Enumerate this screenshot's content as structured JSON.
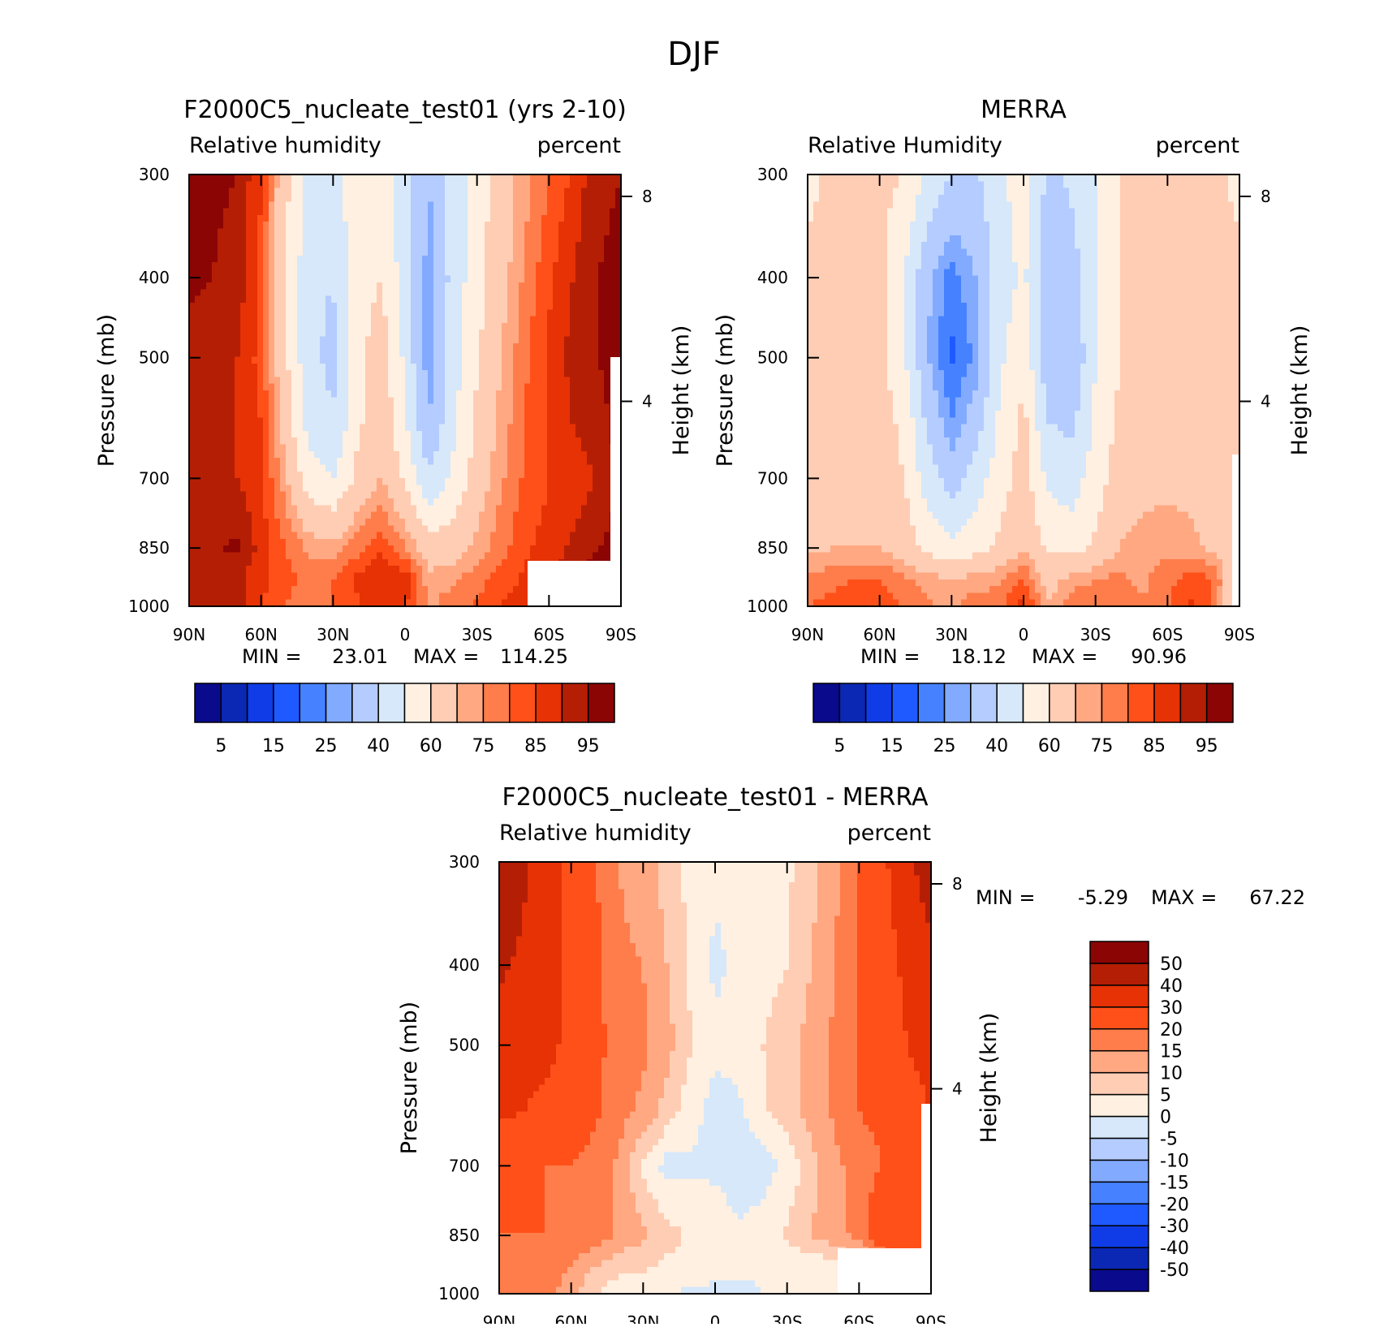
{
  "figure": {
    "title": "DJF"
  },
  "chart_data": [
    {
      "type": "heatmap",
      "title": "F2000C5_nucleate_test01 (yrs 2-10)",
      "left_label": "Relative humidity",
      "right_label": "percent",
      "xlabel": "",
      "ylabel": "Pressure (mb)",
      "y2label": "Height (km)",
      "x_ticks": [
        "90N",
        "60N",
        "30N",
        "0",
        "30S",
        "60S",
        "90S"
      ],
      "y_ticks": [
        "300",
        "400",
        "500",
        "700",
        "850",
        "1000"
      ],
      "y2_ticks": [
        "8",
        "4"
      ],
      "min_label": "MIN =",
      "min_value": "23.01",
      "max_label": "MAX =",
      "max_value": "114.25",
      "colorbar": {
        "orientation": "horizontal",
        "labels": [
          "5",
          "15",
          "25",
          "40",
          "60",
          "75",
          "85",
          "95"
        ]
      },
      "field_lat": [
        -90,
        -80,
        -70,
        -60,
        -50,
        -40,
        -30,
        -20,
        -10,
        0,
        10,
        20,
        30,
        40,
        50,
        60,
        70,
        80,
        90
      ],
      "field_p": [
        300,
        400,
        500,
        600,
        700,
        850,
        925,
        1000
      ],
      "values": [
        [
          95,
          94,
          86,
          80,
          73,
          65,
          55,
          45,
          30,
          44,
          55,
          57,
          47,
          48,
          63,
          85,
          95,
          96,
          97
        ],
        [
          96,
          95,
          90,
          84,
          76,
          67,
          56,
          44,
          26,
          45,
          60,
          55,
          40,
          42,
          60,
          84,
          93,
          95,
          96
        ],
        [
          97,
          95,
          92,
          86,
          79,
          70,
          59,
          45,
          25,
          48,
          66,
          57,
          38,
          42,
          62,
          83,
          90,
          92,
          93
        ],
        [
          97,
          93,
          90,
          86,
          80,
          72,
          62,
          48,
          30,
          52,
          67,
          58,
          40,
          46,
          66,
          85,
          90,
          92,
          93
        ],
        [
          96,
          90,
          87,
          85,
          81,
          74,
          65,
          52,
          42,
          58,
          70,
          62,
          50,
          54,
          72,
          86,
          90,
          90,
          92
        ],
        [
          97,
          95,
          91,
          87,
          84,
          78,
          72,
          66,
          64,
          76,
          84,
          78,
          72,
          74,
          80,
          88,
          96,
          94,
          92
        ],
        [
          99,
          98,
          95,
          90,
          86,
          82,
          78,
          74,
          72,
          88,
          90,
          86,
          80,
          78,
          82,
          86,
          92,
          94,
          95
        ],
        [
          99,
          99,
          97,
          92,
          88,
          85,
          81,
          78,
          74,
          86,
          88,
          84,
          80,
          77,
          80,
          86,
          92,
          93,
          94
        ]
      ]
    },
    {
      "type": "heatmap",
      "title": "MERRA",
      "left_label": "Relative Humidity",
      "right_label": "percent",
      "xlabel": "",
      "ylabel": "Pressure (mb)",
      "y2label": "Height (km)",
      "x_ticks": [
        "90N",
        "60N",
        "30N",
        "0",
        "30S",
        "60S",
        "90S"
      ],
      "y_ticks": [
        "300",
        "400",
        "500",
        "700",
        "850",
        "1000"
      ],
      "y2_ticks": [
        "8",
        "4"
      ],
      "min_label": "MIN =",
      "min_value": "18.12",
      "max_label": "MAX =",
      "max_value": "90.96",
      "colorbar": {
        "orientation": "horizontal",
        "labels": [
          "5",
          "15",
          "25",
          "40",
          "60",
          "75",
          "85",
          "95"
        ]
      },
      "field_lat": [
        -90,
        -80,
        -70,
        -60,
        -50,
        -40,
        -30,
        -20,
        -10,
        0,
        10,
        20,
        30,
        40,
        50,
        60,
        70,
        80,
        90
      ],
      "field_p": [
        300,
        400,
        500,
        600,
        700,
        850,
        925,
        1000
      ],
      "values": [
        [
          57,
          62,
          63,
          63,
          62,
          60,
          50,
          42,
          38,
          55,
          48,
          38,
          40,
          48,
          60,
          62,
          62,
          62,
          57
        ],
        [
          63,
          64,
          64,
          64,
          63,
          60,
          48,
          35,
          32,
          52,
          45,
          30,
          22,
          32,
          50,
          63,
          64,
          64,
          63
        ],
        [
          63,
          64,
          64,
          64,
          63,
          60,
          50,
          30,
          33,
          57,
          48,
          26,
          19,
          30,
          52,
          64,
          64,
          64,
          63
        ],
        [
          62,
          63,
          64,
          64,
          64,
          62,
          52,
          38,
          40,
          63,
          52,
          35,
          25,
          38,
          58,
          64,
          64,
          64,
          63
        ],
        [
          63,
          65,
          67,
          68,
          67,
          65,
          55,
          45,
          48,
          64,
          55,
          45,
          35,
          45,
          60,
          64,
          64,
          64,
          64
        ],
        [
          62,
          67,
          72,
          74,
          73,
          70,
          62,
          56,
          58,
          70,
          62,
          56,
          52,
          57,
          66,
          70,
          70,
          70,
          68
        ],
        [
          55,
          80,
          82,
          78,
          74,
          76,
          75,
          72,
          66,
          80,
          74,
          72,
          70,
          72,
          76,
          80,
          80,
          78,
          76
        ],
        [
          50,
          78,
          86,
          80,
          75,
          78,
          80,
          78,
          70,
          88,
          78,
          78,
          74,
          76,
          80,
          82,
          84,
          82,
          80
        ]
      ]
    },
    {
      "type": "heatmap",
      "title": "F2000C5_nucleate_test01 - MERRA",
      "left_label": "Relative humidity",
      "right_label": "percent",
      "xlabel": "",
      "ylabel": "Pressure (mb)",
      "y2label": "Height (km)",
      "x_ticks": [
        "90N",
        "60N",
        "30N",
        "0",
        "30S",
        "60S",
        "90S"
      ],
      "y_ticks": [
        "300",
        "400",
        "500",
        "700",
        "850",
        "1000"
      ],
      "y2_ticks": [
        "8",
        "4"
      ],
      "min_label": "MIN =",
      "min_value": "-5.29",
      "max_label": "MAX =",
      "max_value": "67.22",
      "colorbar": {
        "orientation": "vertical",
        "labels": [
          "50",
          "40",
          "30",
          "20",
          "15",
          "10",
          "5",
          "0",
          "-5",
          "-10",
          "-15",
          "-20",
          "-30",
          "-40",
          "-50"
        ]
      },
      "field_lat": [
        -90,
        -80,
        -70,
        -60,
        -50,
        -40,
        -30,
        -20,
        -10,
        0,
        10,
        20,
        30,
        40,
        50,
        60,
        70,
        80,
        90
      ],
      "field_p": [
        300,
        400,
        500,
        600,
        700,
        850,
        925,
        1000
      ],
      "values": [
        [
          45,
          38,
          28,
          20,
          14,
          8,
          4,
          3,
          2,
          1,
          3,
          8,
          12,
          15,
          20,
          26,
          34,
          42,
          48
        ],
        [
          38,
          32,
          26,
          20,
          15,
          10,
          5,
          3,
          1,
          -1,
          4,
          10,
          15,
          16,
          22,
          28,
          34,
          38,
          42
        ],
        [
          35,
          30,
          25,
          21,
          16,
          12,
          8,
          5,
          2,
          1,
          5,
          12,
          16,
          17,
          22,
          28,
          32,
          34,
          35
        ],
        [
          30,
          25,
          22,
          20,
          16,
          12,
          8,
          4,
          -1,
          -2,
          2,
          8,
          14,
          17,
          21,
          25,
          28,
          30,
          32
        ],
        [
          28,
          24,
          20,
          17,
          14,
          8,
          1,
          -2,
          -3,
          -1,
          -1,
          -2,
          4,
          14,
          18,
          20,
          20,
          21,
          22
        ],
        [
          26,
          30,
          28,
          17,
          13,
          10,
          6,
          2,
          1,
          3,
          4,
          7,
          11,
          14,
          18,
          19,
          20,
          20,
          20
        ],
        [
          24,
          18,
          11,
          6,
          3,
          1,
          1,
          1,
          2,
          3,
          3,
          4,
          6,
          7,
          10,
          15,
          18,
          18,
          18
        ],
        [
          23,
          13,
          6,
          2,
          1,
          1,
          2,
          0,
          -2,
          -2,
          -1,
          0,
          1,
          2,
          5,
          12,
          17,
          18,
          18
        ]
      ]
    }
  ]
}
